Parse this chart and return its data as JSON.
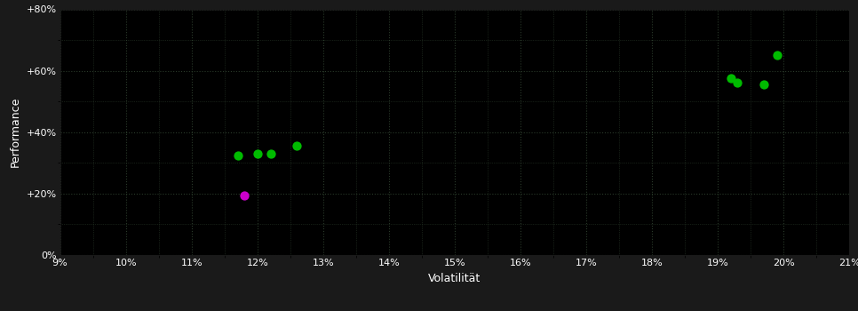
{
  "background_color": "#1a1a1a",
  "plot_bg_color": "#000000",
  "grid_color": "#2a3a2a",
  "text_color": "#ffffff",
  "xlabel": "Volatilität",
  "ylabel": "Performance",
  "xlim": [
    0.09,
    0.21
  ],
  "ylim": [
    0.0,
    0.8
  ],
  "xtick_vals": [
    0.09,
    0.1,
    0.11,
    0.12,
    0.13,
    0.14,
    0.15,
    0.16,
    0.17,
    0.18,
    0.19,
    0.2,
    0.21
  ],
  "ytick_vals": [
    0.0,
    0.2,
    0.4,
    0.6,
    0.8
  ],
  "ytick_labels": [
    "0%",
    "+20%",
    "+40%",
    "+60%",
    "+80%"
  ],
  "green_points": [
    [
      0.117,
      0.325
    ],
    [
      0.12,
      0.33
    ],
    [
      0.122,
      0.33
    ],
    [
      0.126,
      0.355
    ],
    [
      0.192,
      0.575
    ],
    [
      0.193,
      0.56
    ],
    [
      0.197,
      0.555
    ],
    [
      0.199,
      0.65
    ]
  ],
  "magenta_points": [
    [
      0.118,
      0.195
    ]
  ],
  "marker_size": 55,
  "green_color": "#00bb00",
  "magenta_color": "#cc00cc",
  "dot_linewidth": 0,
  "xlabel_fontsize": 9,
  "ylabel_fontsize": 9,
  "tick_fontsize": 8
}
